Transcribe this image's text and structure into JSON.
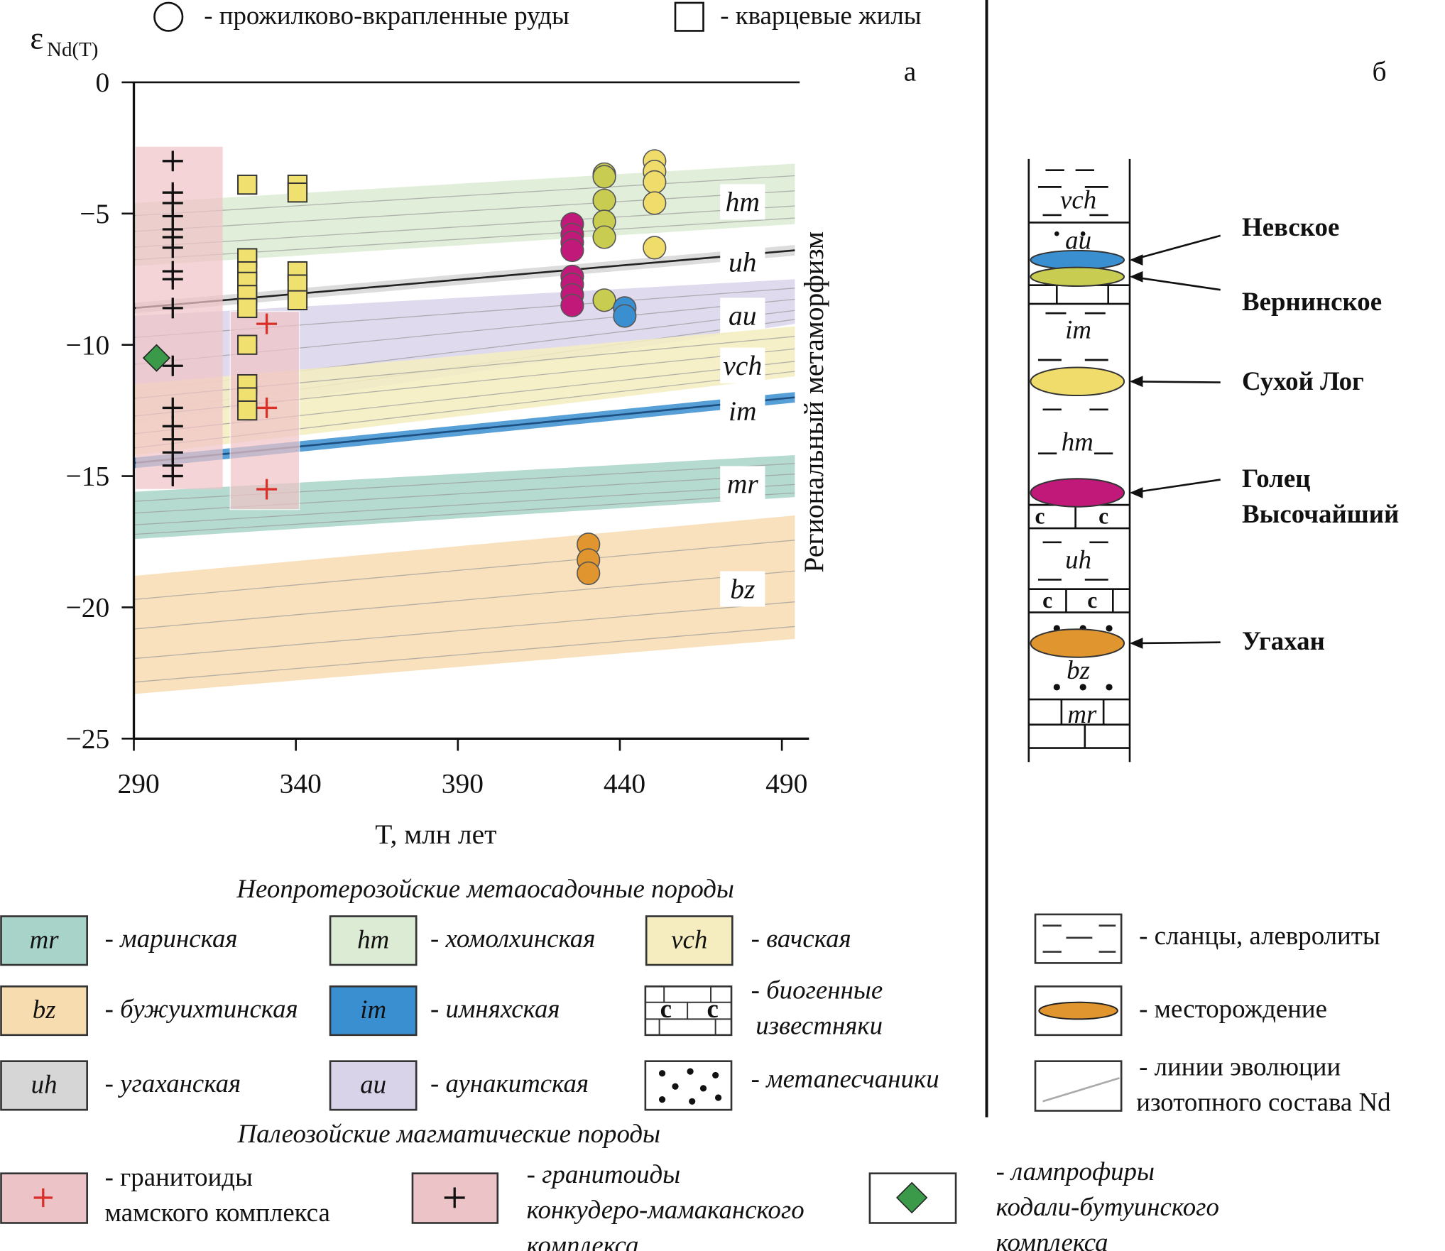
{
  "chart_data": {
    "type": "scatter",
    "panel_label": "а",
    "marker_legend": [
      {
        "marker": "circle",
        "label": "- прожилково-вкрапленные руды"
      },
      {
        "marker": "square",
        "label": "- кварцевые жилы"
      }
    ],
    "y_label": "ε",
    "y_label_subscript": "Nd(T)",
    "x_label": "T, млн лет",
    "annotation": "Региональный метаморфизм",
    "xlim": [
      290,
      498
    ],
    "xticks": [
      290,
      340,
      390,
      440,
      490
    ],
    "ylim": [
      -25,
      0
    ],
    "yticks": [
      0,
      {
        "value": -5,
        "label": "−5"
      },
      {
        "value": -10,
        "label": "−10"
      },
      {
        "value": -15,
        "label": "−15"
      },
      {
        "value": -20,
        "label": "−20"
      },
      {
        "value": -25,
        "label": "−25"
      }
    ],
    "band_x": [
      290,
      494
    ],
    "bands": [
      {
        "name": "hm",
        "color": "#dcebd3",
        "top": [
          -4.6,
          -3.1
        ],
        "bottom": [
          -7.0,
          -5.4
        ]
      },
      {
        "name": "uh",
        "color": "#d6d6d6",
        "line": "#222222",
        "top": [
          -8.4,
          -6.2
        ],
        "bottom": [
          -8.8,
          -6.6
        ]
      },
      {
        "name": "au",
        "color": "#d9d3ea",
        "top": [
          -8.9,
          -7.5
        ],
        "bottom": [
          -13.0,
          -9.2
        ]
      },
      {
        "name": "vch",
        "color": "#f5edc0",
        "top": [
          -11.5,
          -9.3
        ],
        "bottom": [
          -14.2,
          -11.2
        ]
      },
      {
        "name": "im",
        "color": "#3a8fd0",
        "line": "#1d4f80",
        "top": [
          -14.3,
          -11.8
        ],
        "bottom": [
          -14.7,
          -12.2
        ]
      },
      {
        "name": "mr",
        "color": "#a8d3c8",
        "top": [
          -15.6,
          -14.2
        ],
        "bottom": [
          -17.4,
          -15.8
        ]
      },
      {
        "name": "bz",
        "color": "#f7dcb0",
        "top": [
          -18.8,
          -16.5
        ],
        "bottom": [
          -23.3,
          -21.2
        ]
      }
    ],
    "series": [
      {
        "marker": "plus",
        "color": "#111111",
        "x": [
          302,
          302,
          302,
          302,
          302,
          302,
          302,
          302,
          302,
          302,
          302,
          302,
          302,
          302,
          302,
          302,
          302
        ],
        "values": [
          -3,
          -4.2,
          -4.6,
          -5.1,
          -5.6,
          -5.9,
          -6.3,
          -7.2,
          -7.5,
          -8.6,
          -10.8,
          -12.4,
          -13.1,
          -13.6,
          -14.1,
          -14.6,
          -15.0
        ]
      },
      {
        "marker": "plus",
        "color": "#d9302a",
        "x": [
          331,
          331,
          331
        ],
        "values": [
          -9.2,
          -12.4,
          -15.5
        ]
      },
      {
        "marker": "diamond",
        "color": "#3a9a4a",
        "x": [
          297
        ],
        "values": [
          -10.5
        ]
      },
      {
        "marker": "square",
        "color": "#f0e070",
        "x": [
          325,
          325,
          325,
          325,
          325,
          325,
          325,
          325,
          325,
          325,
          340.5,
          340.5,
          340.5,
          340.5,
          340.5
        ],
        "values": [
          -3.9,
          -6.7,
          -7.2,
          -7.6,
          -8.1,
          -8.6,
          -10.0,
          -11.5,
          -12.0,
          -12.5,
          -3.9,
          -4.2,
          -7.2,
          -7.7,
          -8.3
        ]
      },
      {
        "marker": "circle",
        "color": "#c0197a",
        "x": [
          425.3,
          425.3,
          425.3,
          425.3,
          425.3,
          425.3,
          425.3,
          425.3
        ],
        "values": [
          -5.4,
          -5.8,
          -6.1,
          -6.4,
          -7.4,
          -7.7,
          -8.1,
          -8.5
        ]
      },
      {
        "marker": "circle",
        "color": "#c8cc50",
        "x": [
          435.2,
          435.2,
          435.2,
          435.2,
          435.2,
          435.2
        ],
        "values": [
          -3.5,
          -3.6,
          -4.5,
          -5.3,
          -5.9,
          -8.3
        ]
      },
      {
        "marker": "circle",
        "color": "#3a8fd0",
        "x": [
          441.5,
          441.5
        ],
        "values": [
          -8.6,
          -8.9
        ]
      },
      {
        "marker": "circle",
        "color": "#f0dc6a",
        "x": [
          450.7,
          450.7,
          450.7,
          450.7,
          450.7
        ],
        "values": [
          -3.0,
          -3.4,
          -3.8,
          -4.6,
          -6.3
        ]
      },
      {
        "marker": "circle",
        "color": "#e0952f",
        "x": [
          430.3,
          430.3,
          430.3
        ],
        "values": [
          -17.6,
          -18.2,
          -18.7
        ]
      }
    ]
  },
  "column": {
    "panel_label": "б",
    "units": [
      "vch",
      "au",
      "im",
      "hm",
      "uh",
      "bz",
      "mr"
    ],
    "limestone_mark": "с",
    "deposits": [
      {
        "name": [
          "Невское"
        ],
        "color": "#3a8fd0"
      },
      {
        "name": [
          "Вернинское"
        ],
        "color": "#c8cc50"
      },
      {
        "name": [
          "Сухой Лог"
        ],
        "color": "#f0dc6a"
      },
      {
        "name": [
          "Голец",
          "Высочайший"
        ],
        "color": "#c0197a"
      },
      {
        "name": [
          "Угахан"
        ],
        "color": "#e0952f"
      }
    ]
  },
  "legend": {
    "sediment_title": "Неопротерозойские метаосадочные породы",
    "formations": [
      {
        "code": "mr",
        "label": "- маринская",
        "color": "#a8d3c8"
      },
      {
        "code": "bz",
        "label": "- бужуихтинская",
        "color": "#f7dcb0"
      },
      {
        "code": "uh",
        "label": "- угаханская",
        "color": "#d6d6d6"
      },
      {
        "code": "hm",
        "label": "- хомолхинская",
        "color": "#dcebd3"
      },
      {
        "code": "im",
        "label": "- имняхская",
        "color": "#3a8fd0"
      },
      {
        "code": "au",
        "label": "- аунакитская",
        "color": "#d9d3ea"
      },
      {
        "code": "vch",
        "label": "- вачская",
        "color": "#f5edc0"
      }
    ],
    "limestone": [
      "- биогенные",
      "известняки"
    ],
    "sandstone": "- метапесчаники",
    "igneous_title": "Палеозойские магматические породы",
    "mamsky": [
      "- гранитоиды",
      "мамского комплекса"
    ],
    "konkudero": [
      "- гранитоиды",
      "конкудеро-мамаканского",
      "комплекса"
    ],
    "lamprophyre": [
      "- лампрофиры",
      "кодали-бутуинского",
      "комплекса"
    ],
    "shale": "- сланцы, алевролиты",
    "deposit": "- месторождение",
    "evolution": [
      "- линии эволюции",
      "изотопного состава Nd"
    ]
  }
}
